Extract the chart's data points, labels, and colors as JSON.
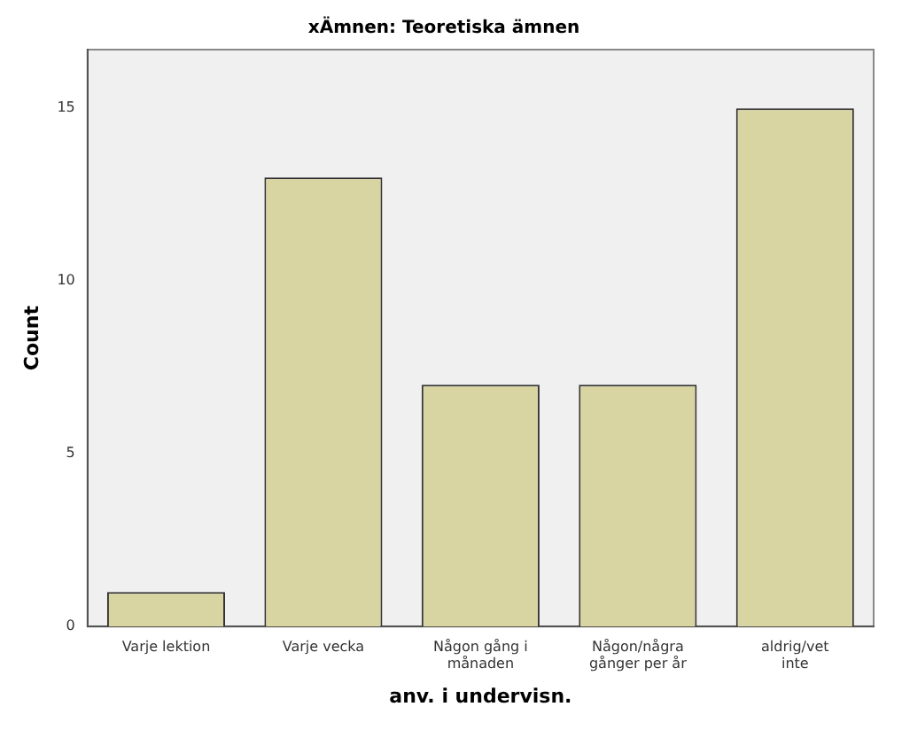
{
  "chart_data": {
    "type": "bar",
    "title": "xÄmnen: Teoretiska ämnen",
    "xlabel": "anv. i undervisn.",
    "ylabel": "Count",
    "categories": [
      "Varje lektion",
      "Varje vecka",
      "Någon gång i månaden",
      "Någon/några gånger per år",
      "aldrig/vet inte"
    ],
    "values": [
      1,
      13,
      7,
      7,
      15
    ],
    "color": "#d9d5a3",
    "ylim": [
      0,
      16.7
    ],
    "yticks": [
      0,
      5,
      10,
      15
    ],
    "grid": false,
    "legend": false
  }
}
